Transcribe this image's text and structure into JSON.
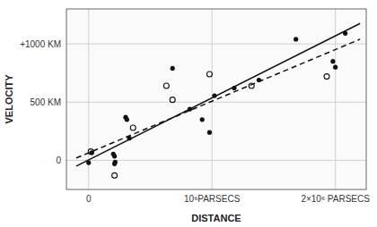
{
  "chart_data": {
    "type": "scatter",
    "xlabel": "DISTANCE",
    "ylabel": "VELOCITY",
    "xlim": [
      -180000,
      2250000
    ],
    "ylim": [
      -250,
      1300
    ],
    "xticks": [
      0,
      {
        "value": 1000000,
        "label": "10⁶PARSECS"
      },
      {
        "value": 2000000,
        "label": "2×10⁶ PARSECS"
      }
    ],
    "yticks": [
      0,
      {
        "value": 500,
        "label": "500 KM"
      },
      {
        "value": 1000,
        "label": "+1000 KM"
      }
    ],
    "grid": true,
    "series": [
      {
        "type": "scatter",
        "marker": "filled",
        "color": "#111111",
        "x": [
          0,
          25000,
          200000,
          210000,
          210000,
          215000,
          300000,
          310000,
          330000,
          680000,
          820000,
          920000,
          980000,
          1020000,
          1180000,
          1380000,
          1680000,
          1980000,
          2000000,
          2080000
        ],
        "values": [
          -20,
          65,
          55,
          35,
          -30,
          -15,
          370,
          350,
          190,
          790,
          440,
          350,
          240,
          555,
          620,
          690,
          1040,
          850,
          800,
          1090
        ]
      },
      {
        "type": "scatter",
        "marker": "open",
        "color": "#111111",
        "x": [
          18000,
          210000,
          360000,
          630000,
          680000,
          980000,
          1320000,
          1930000
        ],
        "values": [
          75,
          -130,
          280,
          640,
          520,
          740,
          640,
          720
        ]
      },
      {
        "type": "line",
        "line_style": "solid",
        "color": "#111111",
        "x": [
          -100000,
          2200000
        ],
        "values": [
          -50,
          1175
        ]
      },
      {
        "type": "line",
        "line_style": "dashed",
        "color": "#111111",
        "x": [
          -100000,
          2200000
        ],
        "values": [
          20,
          1040
        ]
      }
    ]
  }
}
